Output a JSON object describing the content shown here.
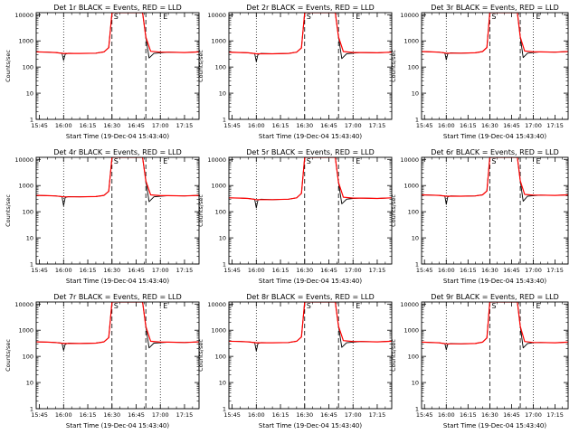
{
  "common": {
    "x_ticks": [
      "15:45",
      "16:00",
      "16:15",
      "16:30",
      "16:45",
      "17:00",
      "17:15"
    ],
    "y_ticks": [
      "1",
      "10",
      "100",
      "1000",
      "10000"
    ],
    "ylabel": "Counts/sec",
    "xlabel": "Start Time (19-Dec-04 15:43:40)",
    "saa_marker_start": "S",
    "saa_marker_end": "E",
    "colors": {
      "events": "#000000",
      "lld": "#ff0000",
      "axes": "#000000"
    }
  },
  "chart_data": [
    {
      "type": "line",
      "title": "Det 1r BLACK = Events, RED = LLD",
      "xlabel": "Start Time (19-Dec-04 15:43:40)",
      "ylabel": "Counts/sec",
      "ylog": true,
      "ylim": [
        1,
        12000
      ],
      "xlim": [
        "15:43",
        "17:24"
      ],
      "vlines_dotted": [
        "16:00",
        "17:00"
      ],
      "vlines_dashed": [
        "16:30",
        "16:51"
      ],
      "series": [
        {
          "name": "Events",
          "x": [
            "15:43",
            "15:50",
            "15:55",
            "15:59",
            "16:00",
            "16:01",
            "16:03",
            "16:10",
            "16:20",
            "16:25",
            "16:28",
            "16:30",
            "16:49",
            "16:51",
            "16:53",
            "16:56",
            "17:00",
            "17:05",
            "17:15",
            "17:24"
          ],
          "y": [
            380,
            370,
            360,
            340,
            180,
            310,
            340,
            330,
            340,
            380,
            550,
            12000,
            12000,
            1400,
            220,
            330,
            350,
            370,
            360,
            380
          ]
        },
        {
          "name": "LLD",
          "x": [
            "15:43",
            "15:50",
            "15:55",
            "16:00",
            "16:05",
            "16:10",
            "16:20",
            "16:25",
            "16:28",
            "16:30",
            "16:49",
            "16:51",
            "16:54",
            "17:00",
            "17:05",
            "17:15",
            "17:24"
          ],
          "y": [
            380,
            370,
            360,
            330,
            330,
            330,
            340,
            380,
            550,
            12000,
            12000,
            1400,
            400,
            370,
            370,
            360,
            380
          ]
        }
      ]
    },
    {
      "type": "line",
      "title": "Det 2r BLACK = Events, RED = LLD",
      "xlabel": "Start Time (19-Dec-04 15:43:40)",
      "ylabel": "Counts/sec",
      "ylog": true,
      "ylim": [
        1,
        12000
      ],
      "xlim": [
        "15:43",
        "17:24"
      ],
      "vlines_dotted": [
        "16:00",
        "17:00"
      ],
      "vlines_dashed": [
        "16:30",
        "16:51"
      ],
      "series": [
        {
          "name": "Events",
          "x": [
            "15:43",
            "15:50",
            "15:55",
            "15:59",
            "16:00",
            "16:01",
            "16:03",
            "16:10",
            "16:20",
            "16:25",
            "16:28",
            "16:30",
            "16:49",
            "16:51",
            "16:53",
            "16:56",
            "17:00",
            "17:05",
            "17:15",
            "17:24"
          ],
          "y": [
            370,
            360,
            350,
            330,
            160,
            300,
            330,
            320,
            330,
            370,
            540,
            12000,
            12000,
            1400,
            210,
            320,
            340,
            360,
            350,
            370
          ]
        },
        {
          "name": "LLD",
          "x": [
            "15:43",
            "15:50",
            "15:55",
            "16:00",
            "16:05",
            "16:10",
            "16:20",
            "16:25",
            "16:28",
            "16:30",
            "16:49",
            "16:51",
            "16:54",
            "17:00",
            "17:05",
            "17:15",
            "17:24"
          ],
          "y": [
            370,
            360,
            350,
            320,
            320,
            320,
            330,
            370,
            540,
            12000,
            12000,
            1400,
            390,
            360,
            360,
            350,
            370
          ]
        }
      ]
    },
    {
      "type": "line",
      "title": "Det 3r BLACK = Events, RED = LLD",
      "xlabel": "Start Time (19-Dec-04 15:43:40)",
      "ylabel": "Counts/sec",
      "ylog": true,
      "ylim": [
        1,
        12000
      ],
      "xlim": [
        "15:43",
        "17:24"
      ],
      "vlines_dotted": [
        "16:00",
        "17:00"
      ],
      "vlines_dashed": [
        "16:30",
        "16:51"
      ],
      "series": [
        {
          "name": "Events",
          "x": [
            "15:43",
            "15:50",
            "15:55",
            "15:59",
            "16:00",
            "16:01",
            "16:03",
            "16:10",
            "16:20",
            "16:25",
            "16:28",
            "16:30",
            "16:49",
            "16:51",
            "16:53",
            "16:56",
            "17:00",
            "17:05",
            "17:15",
            "17:24"
          ],
          "y": [
            390,
            380,
            370,
            350,
            190,
            320,
            350,
            340,
            350,
            390,
            560,
            12000,
            12000,
            1400,
            230,
            340,
            360,
            380,
            370,
            390
          ]
        },
        {
          "name": "LLD",
          "x": [
            "15:43",
            "15:50",
            "15:55",
            "16:00",
            "16:05",
            "16:10",
            "16:20",
            "16:25",
            "16:28",
            "16:30",
            "16:49",
            "16:51",
            "16:54",
            "17:00",
            "17:05",
            "17:15",
            "17:24"
          ],
          "y": [
            390,
            380,
            370,
            340,
            340,
            340,
            350,
            390,
            560,
            12000,
            12000,
            1400,
            410,
            380,
            380,
            370,
            390
          ]
        }
      ]
    },
    {
      "type": "line",
      "title": "Det 4r BLACK = Events, RED = LLD",
      "xlabel": "Start Time (19-Dec-04 15:43:40)",
      "ylabel": "Counts/sec",
      "ylog": true,
      "ylim": [
        1,
        12000
      ],
      "xlim": [
        "15:43",
        "17:24"
      ],
      "vlines_dotted": [
        "16:00",
        "17:00"
      ],
      "vlines_dashed": [
        "16:30",
        "16:51"
      ],
      "series": [
        {
          "name": "Events",
          "x": [
            "15:43",
            "15:50",
            "15:55",
            "15:59",
            "16:00",
            "16:01",
            "16:03",
            "16:10",
            "16:20",
            "16:25",
            "16:28",
            "16:30",
            "16:49",
            "16:51",
            "16:53",
            "16:56",
            "17:00",
            "17:05",
            "17:15",
            "17:24"
          ],
          "y": [
            420,
            410,
            400,
            380,
            170,
            350,
            380,
            370,
            380,
            420,
            600,
            12000,
            12000,
            1500,
            240,
            370,
            390,
            410,
            400,
            420
          ]
        },
        {
          "name": "LLD",
          "x": [
            "15:43",
            "15:50",
            "15:55",
            "16:00",
            "16:05",
            "16:10",
            "16:20",
            "16:25",
            "16:28",
            "16:30",
            "16:49",
            "16:51",
            "16:54",
            "17:00",
            "17:05",
            "17:15",
            "17:24"
          ],
          "y": [
            420,
            410,
            400,
            370,
            370,
            370,
            380,
            420,
            600,
            12000,
            12000,
            1500,
            440,
            410,
            410,
            400,
            420
          ]
        }
      ]
    },
    {
      "type": "line",
      "title": "Det 5r BLACK = Events, RED = LLD",
      "xlabel": "Start Time (19-Dec-04 15:43:40)",
      "ylabel": "Counts/sec",
      "ylog": true,
      "ylim": [
        1,
        12000
      ],
      "xlim": [
        "15:43",
        "17:24"
      ],
      "vlines_dotted": [
        "16:00",
        "17:00"
      ],
      "vlines_dashed": [
        "16:30",
        "16:51"
      ],
      "series": [
        {
          "name": "Events",
          "x": [
            "15:43",
            "15:50",
            "15:55",
            "15:59",
            "16:00",
            "16:01",
            "16:03",
            "16:10",
            "16:20",
            "16:25",
            "16:28",
            "16:30",
            "16:49",
            "16:51",
            "16:53",
            "16:56",
            "17:00",
            "17:05",
            "17:15",
            "17:24"
          ],
          "y": [
            340,
            330,
            320,
            300,
            140,
            280,
            300,
            290,
            300,
            340,
            500,
            12000,
            12000,
            1300,
            200,
            300,
            320,
            330,
            320,
            340
          ]
        },
        {
          "name": "LLD",
          "x": [
            "15:43",
            "15:50",
            "15:55",
            "16:00",
            "16:05",
            "16:10",
            "16:20",
            "16:25",
            "16:28",
            "16:30",
            "16:49",
            "16:51",
            "16:54",
            "17:00",
            "17:05",
            "17:15",
            "17:24"
          ],
          "y": [
            340,
            330,
            320,
            290,
            290,
            290,
            300,
            340,
            500,
            12000,
            12000,
            1300,
            360,
            330,
            330,
            320,
            340
          ]
        }
      ]
    },
    {
      "type": "line",
      "title": "Det 6r BLACK = Events, RED = LLD",
      "xlabel": "Start Time (19-Dec-04 15:43:40)",
      "ylabel": "Counts/sec",
      "ylog": true,
      "ylim": [
        1,
        12000
      ],
      "xlim": [
        "15:43",
        "17:24"
      ],
      "vlines_dotted": [
        "16:00",
        "17:00"
      ],
      "vlines_dashed": [
        "16:30",
        "16:51"
      ],
      "series": [
        {
          "name": "Events",
          "x": [
            "15:43",
            "15:50",
            "15:55",
            "15:59",
            "16:00",
            "16:01",
            "16:03",
            "16:10",
            "16:20",
            "16:25",
            "16:28",
            "16:30",
            "16:49",
            "16:51",
            "16:53",
            "16:56",
            "17:00",
            "17:05",
            "17:15",
            "17:24"
          ],
          "y": [
            440,
            430,
            420,
            400,
            190,
            370,
            400,
            390,
            400,
            440,
            620,
            12000,
            12000,
            1500,
            250,
            390,
            410,
            430,
            420,
            440
          ]
        },
        {
          "name": "LLD",
          "x": [
            "15:43",
            "15:50",
            "15:55",
            "16:00",
            "16:05",
            "16:10",
            "16:20",
            "16:25",
            "16:28",
            "16:30",
            "16:49",
            "16:51",
            "16:54",
            "17:00",
            "17:05",
            "17:15",
            "17:24"
          ],
          "y": [
            440,
            430,
            420,
            390,
            390,
            390,
            400,
            440,
            620,
            12000,
            12000,
            1500,
            460,
            430,
            430,
            420,
            440
          ]
        }
      ]
    },
    {
      "type": "line",
      "title": "Det 7r BLACK = Events, RED = LLD",
      "xlabel": "Start Time (19-Dec-04 15:43:40)",
      "ylabel": "Counts/sec",
      "ylog": true,
      "ylim": [
        1,
        12000
      ],
      "xlim": [
        "15:43",
        "17:24"
      ],
      "vlines_dotted": [
        "16:00",
        "17:00"
      ],
      "vlines_dashed": [
        "16:30",
        "16:51"
      ],
      "series": [
        {
          "name": "Events",
          "x": [
            "15:43",
            "15:50",
            "15:55",
            "15:59",
            "16:00",
            "16:01",
            "16:03",
            "16:10",
            "16:20",
            "16:25",
            "16:28",
            "16:30",
            "16:49",
            "16:51",
            "16:53",
            "16:56",
            "17:00",
            "17:05",
            "17:15",
            "17:24"
          ],
          "y": [
            360,
            350,
            340,
            320,
            170,
            290,
            320,
            310,
            320,
            360,
            520,
            12000,
            12000,
            1400,
            210,
            320,
            330,
            350,
            340,
            360
          ]
        },
        {
          "name": "LLD",
          "x": [
            "15:43",
            "15:50",
            "15:55",
            "16:00",
            "16:05",
            "16:10",
            "16:20",
            "16:25",
            "16:28",
            "16:30",
            "16:49",
            "16:51",
            "16:54",
            "17:00",
            "17:05",
            "17:15",
            "17:24"
          ],
          "y": [
            360,
            350,
            340,
            310,
            310,
            310,
            320,
            360,
            520,
            12000,
            12000,
            1400,
            380,
            350,
            350,
            340,
            360
          ]
        }
      ]
    },
    {
      "type": "line",
      "title": "Det 8r BLACK = Events, RED = LLD",
      "xlabel": "Start Time (19-Dec-04 15:43:40)",
      "ylabel": "Counts/sec",
      "ylog": true,
      "ylim": [
        1,
        12000
      ],
      "xlim": [
        "15:43",
        "17:24"
      ],
      "vlines_dotted": [
        "16:00",
        "17:00"
      ],
      "vlines_dashed": [
        "16:30",
        "16:51"
      ],
      "series": [
        {
          "name": "Events",
          "x": [
            "15:43",
            "15:50",
            "15:55",
            "15:59",
            "16:00",
            "16:01",
            "16:03",
            "16:10",
            "16:20",
            "16:25",
            "16:28",
            "16:30",
            "16:49",
            "16:51",
            "16:53",
            "16:56",
            "17:00",
            "17:05",
            "17:15",
            "17:24"
          ],
          "y": [
            380,
            370,
            360,
            340,
            160,
            310,
            340,
            330,
            340,
            380,
            550,
            12000,
            12000,
            1400,
            220,
            330,
            350,
            370,
            360,
            380
          ]
        },
        {
          "name": "LLD",
          "x": [
            "15:43",
            "15:50",
            "15:55",
            "16:00",
            "16:05",
            "16:10",
            "16:20",
            "16:25",
            "16:28",
            "16:30",
            "16:49",
            "16:51",
            "16:54",
            "17:00",
            "17:05",
            "17:15",
            "17:24"
          ],
          "y": [
            380,
            370,
            360,
            330,
            330,
            330,
            340,
            380,
            550,
            12000,
            12000,
            1400,
            400,
            370,
            370,
            360,
            380
          ]
        }
      ]
    },
    {
      "type": "line",
      "title": "Det 9r BLACK = Events, RED = LLD",
      "xlabel": "Start Time (19-Dec-04 15:43:40)",
      "ylabel": "Counts/sec",
      "ylog": true,
      "ylim": [
        1,
        12000
      ],
      "xlim": [
        "15:43",
        "17:24"
      ],
      "vlines_dotted": [
        "16:00",
        "17:00"
      ],
      "vlines_dashed": [
        "16:30",
        "16:51"
      ],
      "series": [
        {
          "name": "Events",
          "x": [
            "15:43",
            "15:50",
            "15:55",
            "15:59",
            "16:00",
            "16:01",
            "16:03",
            "16:10",
            "16:20",
            "16:25",
            "16:28",
            "16:30",
            "16:49",
            "16:51",
            "16:53",
            "16:56",
            "17:00",
            "17:05",
            "17:15",
            "17:24"
          ],
          "y": [
            350,
            340,
            330,
            310,
            180,
            290,
            310,
            300,
            310,
            350,
            510,
            12000,
            12000,
            1400,
            210,
            310,
            330,
            340,
            330,
            350
          ]
        },
        {
          "name": "LLD",
          "x": [
            "15:43",
            "15:50",
            "15:55",
            "16:00",
            "16:05",
            "16:10",
            "16:20",
            "16:25",
            "16:28",
            "16:30",
            "16:49",
            "16:51",
            "16:54",
            "17:00",
            "17:05",
            "17:15",
            "17:24"
          ],
          "y": [
            350,
            340,
            330,
            300,
            300,
            300,
            310,
            350,
            510,
            12000,
            12000,
            1400,
            370,
            340,
            340,
            330,
            350
          ]
        }
      ]
    }
  ]
}
